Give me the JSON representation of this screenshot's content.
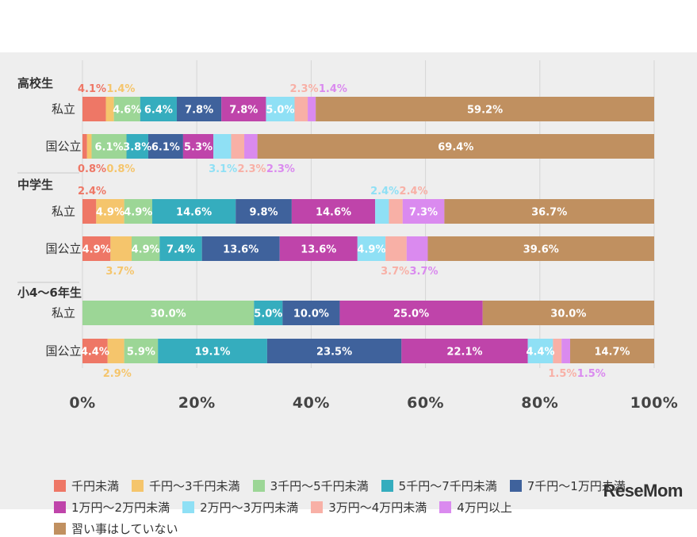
{
  "watermark": "ReseMom",
  "chart_data": {
    "type": "bar",
    "orientation": "horizontal-stacked-100",
    "xlim": [
      0,
      100
    ],
    "x_ticks": [
      "0%",
      "20%",
      "40%",
      "60%",
      "80%",
      "100%"
    ],
    "grid": true,
    "legend_position": "bottom",
    "series": [
      {
        "name": "千円未満",
        "color": "#ee7766"
      },
      {
        "name": "千円〜3千円未満",
        "color": "#f5c56c"
      },
      {
        "name": "3千円〜5千円未満",
        "color": "#9cd696"
      },
      {
        "name": "5千円〜7千円未満",
        "color": "#35adbe"
      },
      {
        "name": "7千円〜1万円未満",
        "color": "#3f629c"
      },
      {
        "name": "1万円〜2万円未満",
        "color": "#bf44aa"
      },
      {
        "name": "2万円〜3万円未満",
        "color": "#8fe0f5"
      },
      {
        "name": "3万円〜4万円未満",
        "color": "#f8b0a6"
      },
      {
        "name": "4万円以上",
        "color": "#da8aef"
      },
      {
        "name": "習い事はしていない",
        "color": "#c09060"
      }
    ],
    "groups": [
      {
        "name": "高校生",
        "rows": [
          {
            "label": "私立",
            "values": [
              4.1,
              1.4,
              4.6,
              6.4,
              7.8,
              7.8,
              5.0,
              2.3,
              1.4,
              59.2
            ]
          },
          {
            "label": "国公立",
            "values": [
              0.8,
              0.8,
              6.1,
              3.8,
              6.1,
              5.3,
              3.1,
              2.3,
              2.3,
              69.4
            ]
          }
        ]
      },
      {
        "name": "中学生",
        "rows": [
          {
            "label": "私立",
            "values": [
              2.4,
              4.9,
              4.9,
              14.6,
              9.8,
              14.6,
              2.4,
              2.4,
              7.3,
              36.7
            ]
          },
          {
            "label": "国公立",
            "values": [
              4.9,
              3.7,
              4.9,
              7.4,
              13.6,
              13.6,
              4.9,
              3.7,
              3.7,
              39.6
            ]
          }
        ]
      },
      {
        "name": "小4〜6年生",
        "rows": [
          {
            "label": "私立",
            "values": [
              0,
              0,
              30.0,
              5.0,
              10.0,
              25.0,
              0,
              0,
              0,
              30.0
            ]
          },
          {
            "label": "国公立",
            "values": [
              4.4,
              2.9,
              5.9,
              19.1,
              23.5,
              22.1,
              4.4,
              1.5,
              1.5,
              14.7
            ]
          }
        ]
      }
    ],
    "display_labels": [
      [
        [
          {
            "s": 0,
            "t": "4.1%",
            "pos": "above"
          },
          {
            "s": 1,
            "t": "1.4%",
            "pos": "above"
          },
          {
            "s": 2,
            "t": "4.6%",
            "pos": "in"
          },
          {
            "s": 3,
            "t": "6.4%",
            "pos": "in"
          },
          {
            "s": 4,
            "t": "7.8%",
            "pos": "in"
          },
          {
            "s": 5,
            "t": "7.8%",
            "pos": "in"
          },
          {
            "s": 6,
            "t": "5.0%",
            "pos": "in"
          },
          {
            "s": 7,
            "t": "2.3%",
            "pos": "above"
          },
          {
            "s": 8,
            "t": "1.4%",
            "pos": "above"
          },
          {
            "s": 9,
            "t": "59.2%",
            "pos": "in"
          }
        ],
        [
          {
            "s": 0,
            "t": "0.8%",
            "pos": "below"
          },
          {
            "s": 1,
            "t": "0.8%",
            "pos": "below"
          },
          {
            "s": 2,
            "t": "6.1%",
            "pos": "in"
          },
          {
            "s": 3,
            "t": "3.8%",
            "pos": "in"
          },
          {
            "s": 4,
            "t": "6.1%",
            "pos": "in"
          },
          {
            "s": 5,
            "t": "5.3%",
            "pos": "in"
          },
          {
            "s": 6,
            "t": "3.1%",
            "pos": "below"
          },
          {
            "s": 7,
            "t": "2.3%",
            "pos": "below"
          },
          {
            "s": 8,
            "t": "2.3%",
            "pos": "below"
          },
          {
            "s": 9,
            "t": "69.4%",
            "pos": "in"
          }
        ]
      ],
      [
        [
          {
            "s": 0,
            "t": "2.4%",
            "pos": "above"
          },
          {
            "s": 1,
            "t": "4.9%",
            "pos": "in"
          },
          {
            "s": 2,
            "t": "4.9%",
            "pos": "in"
          },
          {
            "s": 3,
            "t": "14.6%",
            "pos": "in"
          },
          {
            "s": 4,
            "t": "9.8%",
            "pos": "in"
          },
          {
            "s": 5,
            "t": "14.6%",
            "pos": "in"
          },
          {
            "s": 6,
            "t": "2.4%",
            "pos": "above"
          },
          {
            "s": 7,
            "t": "2.4%",
            "pos": "above"
          },
          {
            "s": 8,
            "t": "7.3%",
            "pos": "in"
          },
          {
            "s": 9,
            "t": "36.7%",
            "pos": "in"
          }
        ],
        [
          {
            "s": 0,
            "t": "4.9%",
            "pos": "in"
          },
          {
            "s": 1,
            "t": "3.7%",
            "pos": "below"
          },
          {
            "s": 2,
            "t": "4.9%",
            "pos": "in"
          },
          {
            "s": 3,
            "t": "7.4%",
            "pos": "in"
          },
          {
            "s": 4,
            "t": "13.6%",
            "pos": "in"
          },
          {
            "s": 5,
            "t": "13.6%",
            "pos": "in"
          },
          {
            "s": 6,
            "t": "4.9%",
            "pos": "in"
          },
          {
            "s": 7,
            "t": "3.7%",
            "pos": "below"
          },
          {
            "s": 8,
            "t": "3.7%",
            "pos": "below"
          },
          {
            "s": 9,
            "t": "39.6%",
            "pos": "in"
          }
        ]
      ],
      [
        [
          {
            "s": 2,
            "t": "30.0%",
            "pos": "in"
          },
          {
            "s": 3,
            "t": "5.0%",
            "pos": "in"
          },
          {
            "s": 4,
            "t": "10.0%",
            "pos": "in"
          },
          {
            "s": 5,
            "t": "25.0%",
            "pos": "in"
          },
          {
            "s": 9,
            "t": "30.0%",
            "pos": "in"
          }
        ],
        [
          {
            "s": 0,
            "t": "4.4%",
            "pos": "in"
          },
          {
            "s": 1,
            "t": "2.9%",
            "pos": "below"
          },
          {
            "s": 2,
            "t": "5.9%",
            "pos": "in"
          },
          {
            "s": 3,
            "t": "19.1%",
            "pos": "in"
          },
          {
            "s": 4,
            "t": "23.5%",
            "pos": "in"
          },
          {
            "s": 5,
            "t": "22.1%",
            "pos": "in"
          },
          {
            "s": 6,
            "t": "4.4%",
            "pos": "in"
          },
          {
            "s": 7,
            "t": "1.5%",
            "pos": "below"
          },
          {
            "s": 8,
            "t": "1.5%",
            "pos": "below"
          },
          {
            "s": 9,
            "t": "14.7%",
            "pos": "in"
          }
        ]
      ]
    ]
  }
}
